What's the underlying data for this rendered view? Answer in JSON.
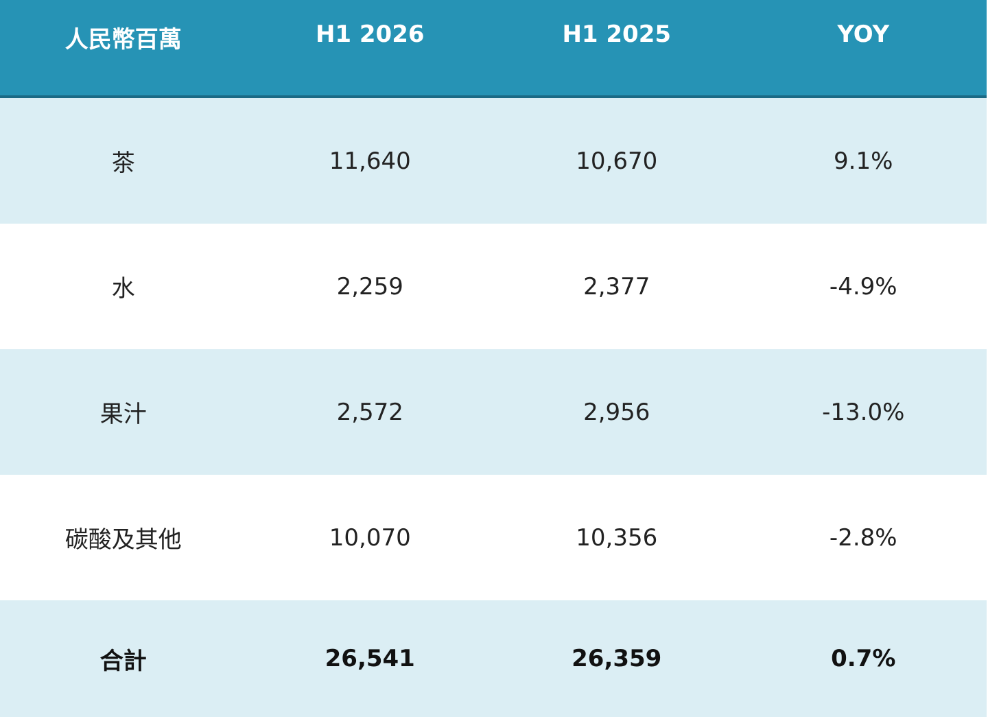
{
  "table": {
    "header": [
      "人民幣百萬",
      "H1 2026",
      "H1 2025",
      "YOY"
    ],
    "rows": [
      [
        "茶",
        "11,640",
        "10,670",
        "9.1%"
      ],
      [
        "水",
        "2,259",
        "2,377",
        "-4.9%"
      ],
      [
        "果汁",
        "2,572",
        "2,956",
        "-13.0%"
      ],
      [
        "碳酸及其他",
        "10,070",
        "10,356",
        "-2.8%"
      ],
      [
        "合計",
        "26,541",
        "26,359",
        "0.7%"
      ]
    ]
  }
}
